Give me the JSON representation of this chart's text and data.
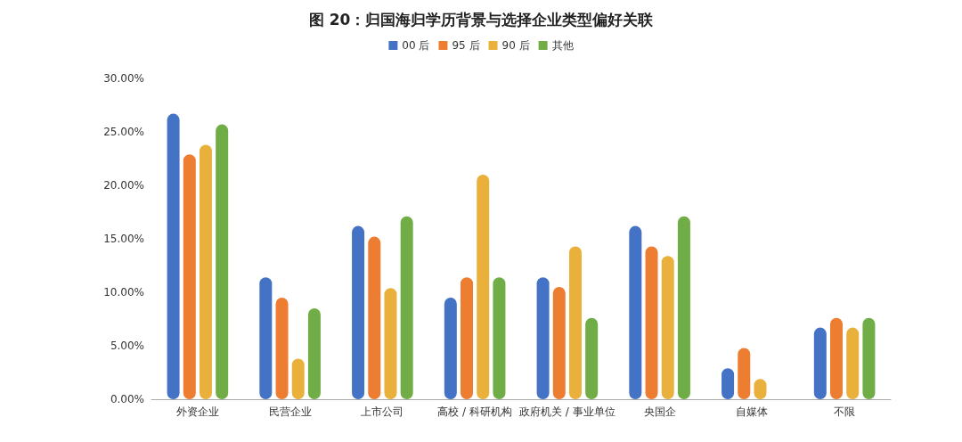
{
  "chart_data": {
    "type": "bar",
    "title": "图 20：归国海归学历背景与选择企业类型偏好关联",
    "categories": [
      "外资企业",
      "民营企业",
      "上市公司",
      "高校 / 科研机构",
      "政府机关 / 事业单位",
      "央国企",
      "自媒体",
      "不限"
    ],
    "series": [
      {
        "name": "00 后",
        "color": "#4472c4",
        "values": [
          26.7,
          11.4,
          16.2,
          9.5,
          11.4,
          16.2,
          2.9,
          6.7
        ]
      },
      {
        "name": "95 后",
        "color": "#ed7d31",
        "values": [
          22.9,
          9.5,
          15.2,
          11.4,
          10.5,
          14.3,
          4.8,
          7.6
        ]
      },
      {
        "name": "90 后",
        "color": "#e9b03b",
        "values": [
          23.8,
          3.8,
          10.4,
          21.0,
          14.3,
          13.4,
          1.9,
          6.7
        ]
      },
      {
        "name": "其他",
        "color": "#70ad47",
        "values": [
          25.7,
          8.5,
          17.1,
          11.4,
          7.6,
          17.1,
          null,
          7.6
        ]
      }
    ],
    "ylim": [
      0,
      30
    ],
    "yticks": [
      {
        "value": 0,
        "label": "0.00%"
      },
      {
        "value": 5,
        "label": "5.00%"
      },
      {
        "value": 10,
        "label": "10.00%"
      },
      {
        "value": 15,
        "label": "15.00%"
      },
      {
        "value": 20,
        "label": "20.00%"
      },
      {
        "value": 25,
        "label": "25.00%"
      },
      {
        "value": 30,
        "label": "30.00%"
      }
    ],
    "grid": false,
    "legend": "top"
  }
}
